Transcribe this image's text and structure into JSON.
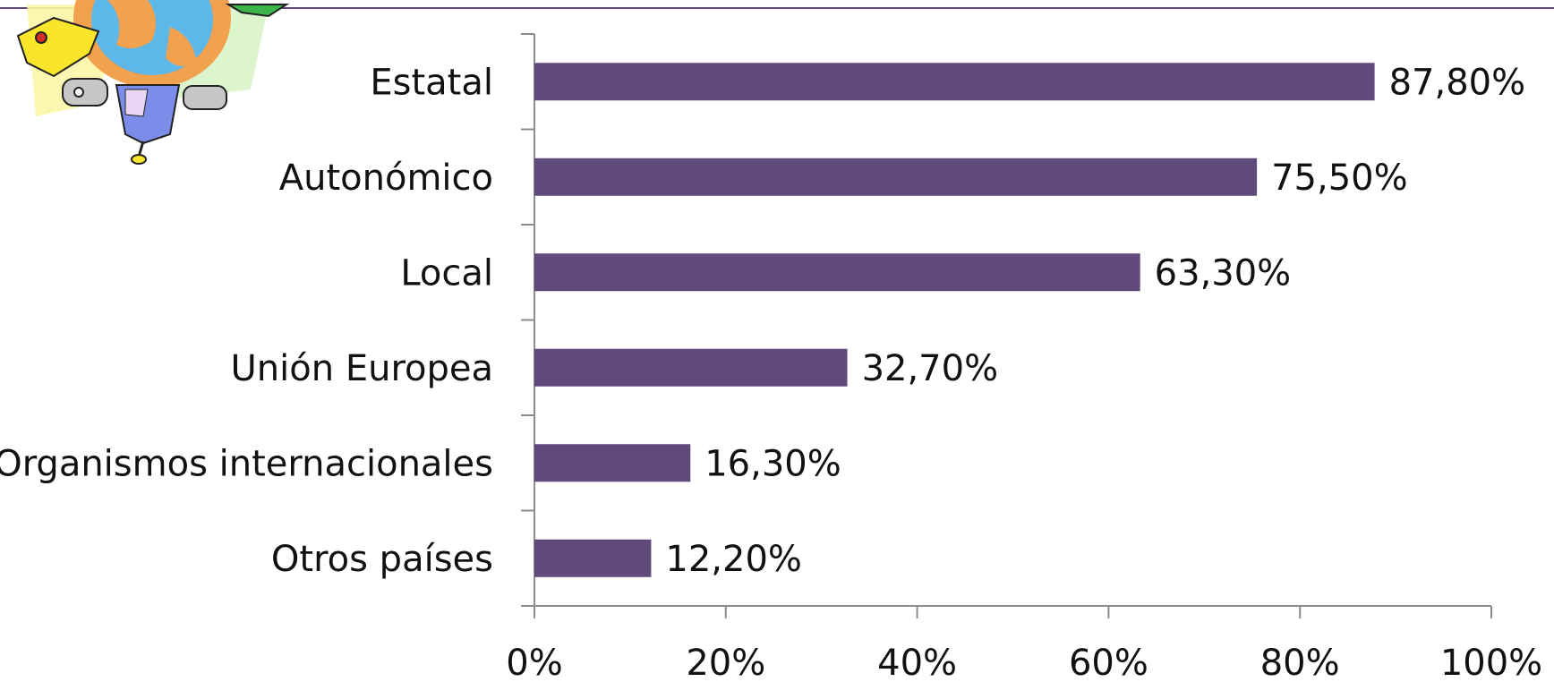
{
  "colors": {
    "bar": "#604A7B",
    "axis": "#8C8C8C",
    "text": "#111111",
    "top_rule": "#604A7B"
  },
  "decoration": {
    "name": "globe-children-clipart"
  },
  "chart_data": {
    "type": "bar",
    "orientation": "horizontal",
    "categories": [
      "Estatal",
      "Autonómico",
      "Local",
      "Unión Europea",
      "Organismos internacionales",
      "Otros países"
    ],
    "values": [
      87.8,
      75.5,
      63.3,
      32.7,
      16.3,
      12.2
    ],
    "value_labels": [
      "87,80%",
      "75,50%",
      "63,30%",
      "32,70%",
      "16,30%",
      "12,20%"
    ],
    "xlim": [
      0,
      100
    ],
    "x_ticks": [
      0,
      20,
      40,
      60,
      80,
      100
    ],
    "x_tick_labels": [
      "0%",
      "20%",
      "40%",
      "60%",
      "80%",
      "100%"
    ],
    "grid": false,
    "legend": "none"
  }
}
